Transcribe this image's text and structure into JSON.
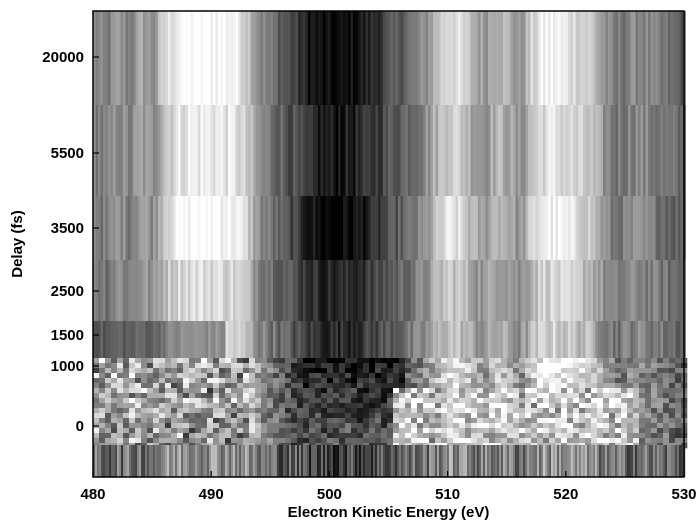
{
  "chart_data": {
    "type": "heatmap",
    "colormap": "gray",
    "xlabel": "Electron Kinetic Energy (eV)",
    "ylabel": "Delay (fs)",
    "x_range": [
      480,
      530
    ],
    "x_ticks": [
      "480",
      "490",
      "500",
      "510",
      "520",
      "530"
    ],
    "y_scale": "nonlinear (categorical delay bands)",
    "y_ticks": [
      "0",
      "1000",
      "1500",
      "2500",
      "3500",
      "5500",
      "20000"
    ],
    "x_energy_ev": [
      480,
      481,
      482,
      483,
      484,
      485,
      486,
      487,
      488,
      489,
      490,
      491,
      492,
      493,
      494,
      495,
      496,
      497,
      498,
      499,
      500,
      501,
      502,
      503,
      504,
      505,
      506,
      507,
      508,
      509,
      510,
      511,
      512,
      513,
      514,
      515,
      516,
      517,
      518,
      519,
      520,
      521,
      522,
      523,
      524,
      525,
      526,
      527,
      528,
      529,
      530
    ],
    "intensity_profile_long_delay": [
      0.55,
      0.45,
      0.6,
      0.5,
      0.65,
      0.55,
      0.85,
      0.95,
      1.0,
      1.0,
      1.0,
      0.98,
      0.95,
      0.8,
      0.55,
      0.45,
      0.35,
      0.25,
      0.12,
      0.05,
      0.02,
      0.03,
      0.06,
      0.12,
      0.2,
      0.3,
      0.38,
      0.45,
      0.55,
      0.75,
      0.9,
      0.85,
      0.7,
      0.6,
      0.75,
      0.7,
      0.55,
      0.8,
      0.95,
      0.95,
      0.9,
      0.85,
      0.8,
      0.6,
      0.45,
      0.5,
      0.55,
      0.5,
      0.45,
      0.4,
      0.35
    ],
    "grid": false
  }
}
